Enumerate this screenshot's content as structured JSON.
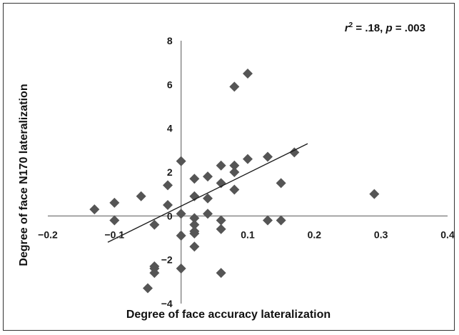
{
  "chart_data": {
    "type": "scatter",
    "xlabel": "Degree of face accuracy lateralization",
    "ylabel": "Degree of face N170 lateralization",
    "xlim": [
      -0.2,
      0.4
    ],
    "ylim": [
      -4,
      8
    ],
    "xticks": [
      "−0.2",
      "−0.1",
      "0",
      "0.1",
      "0.2",
      "0.3",
      "0.4"
    ],
    "yticks": [
      "−4",
      "−2",
      "0",
      "2",
      "4",
      "6",
      "8"
    ],
    "grid": false,
    "annotation": {
      "r_symbol": "r",
      "r_exp": "2",
      "r_value": " = .18, ",
      "p_symbol": "p",
      "p_value": " = .003"
    },
    "trendline": {
      "x": [
        -0.11,
        0.19
      ],
      "y": [
        -1.2,
        3.3
      ]
    },
    "marker_color": "#555555",
    "points": [
      {
        "x": -0.13,
        "y": 0.3
      },
      {
        "x": -0.1,
        "y": 0.6
      },
      {
        "x": -0.1,
        "y": -0.2
      },
      {
        "x": -0.06,
        "y": 0.9
      },
      {
        "x": -0.05,
        "y": -3.3
      },
      {
        "x": -0.02,
        "y": 1.4
      },
      {
        "x": -0.02,
        "y": 0.5
      },
      {
        "x": -0.04,
        "y": -0.4
      },
      {
        "x": -0.04,
        "y": -2.3
      },
      {
        "x": -0.04,
        "y": -2.6
      },
      {
        "x": -0.04,
        "y": -2.4
      },
      {
        "x": 0.0,
        "y": 2.5
      },
      {
        "x": 0.0,
        "y": 0.1
      },
      {
        "x": 0.0,
        "y": -0.9
      },
      {
        "x": 0.0,
        "y": -2.4
      },
      {
        "x": 0.02,
        "y": 1.7
      },
      {
        "x": 0.02,
        "y": 0.9
      },
      {
        "x": 0.02,
        "y": -0.1
      },
      {
        "x": 0.02,
        "y": -0.4
      },
      {
        "x": 0.02,
        "y": -0.7
      },
      {
        "x": 0.02,
        "y": -0.8
      },
      {
        "x": 0.02,
        "y": -1.4
      },
      {
        "x": 0.04,
        "y": 1.8
      },
      {
        "x": 0.04,
        "y": 0.8
      },
      {
        "x": 0.04,
        "y": 0.1
      },
      {
        "x": 0.06,
        "y": 2.3
      },
      {
        "x": 0.06,
        "y": 1.5
      },
      {
        "x": 0.06,
        "y": -0.2
      },
      {
        "x": 0.06,
        "y": -0.6
      },
      {
        "x": 0.06,
        "y": -2.6
      },
      {
        "x": 0.08,
        "y": 5.9
      },
      {
        "x": 0.08,
        "y": 2.3
      },
      {
        "x": 0.08,
        "y": 2.0
      },
      {
        "x": 0.08,
        "y": 1.2
      },
      {
        "x": 0.1,
        "y": 6.5
      },
      {
        "x": 0.1,
        "y": 2.6
      },
      {
        "x": 0.13,
        "y": 2.7
      },
      {
        "x": 0.13,
        "y": -0.2
      },
      {
        "x": 0.15,
        "y": 1.5
      },
      {
        "x": 0.15,
        "y": -0.2
      },
      {
        "x": 0.17,
        "y": 2.9
      },
      {
        "x": 0.29,
        "y": 1.0
      }
    ]
  }
}
